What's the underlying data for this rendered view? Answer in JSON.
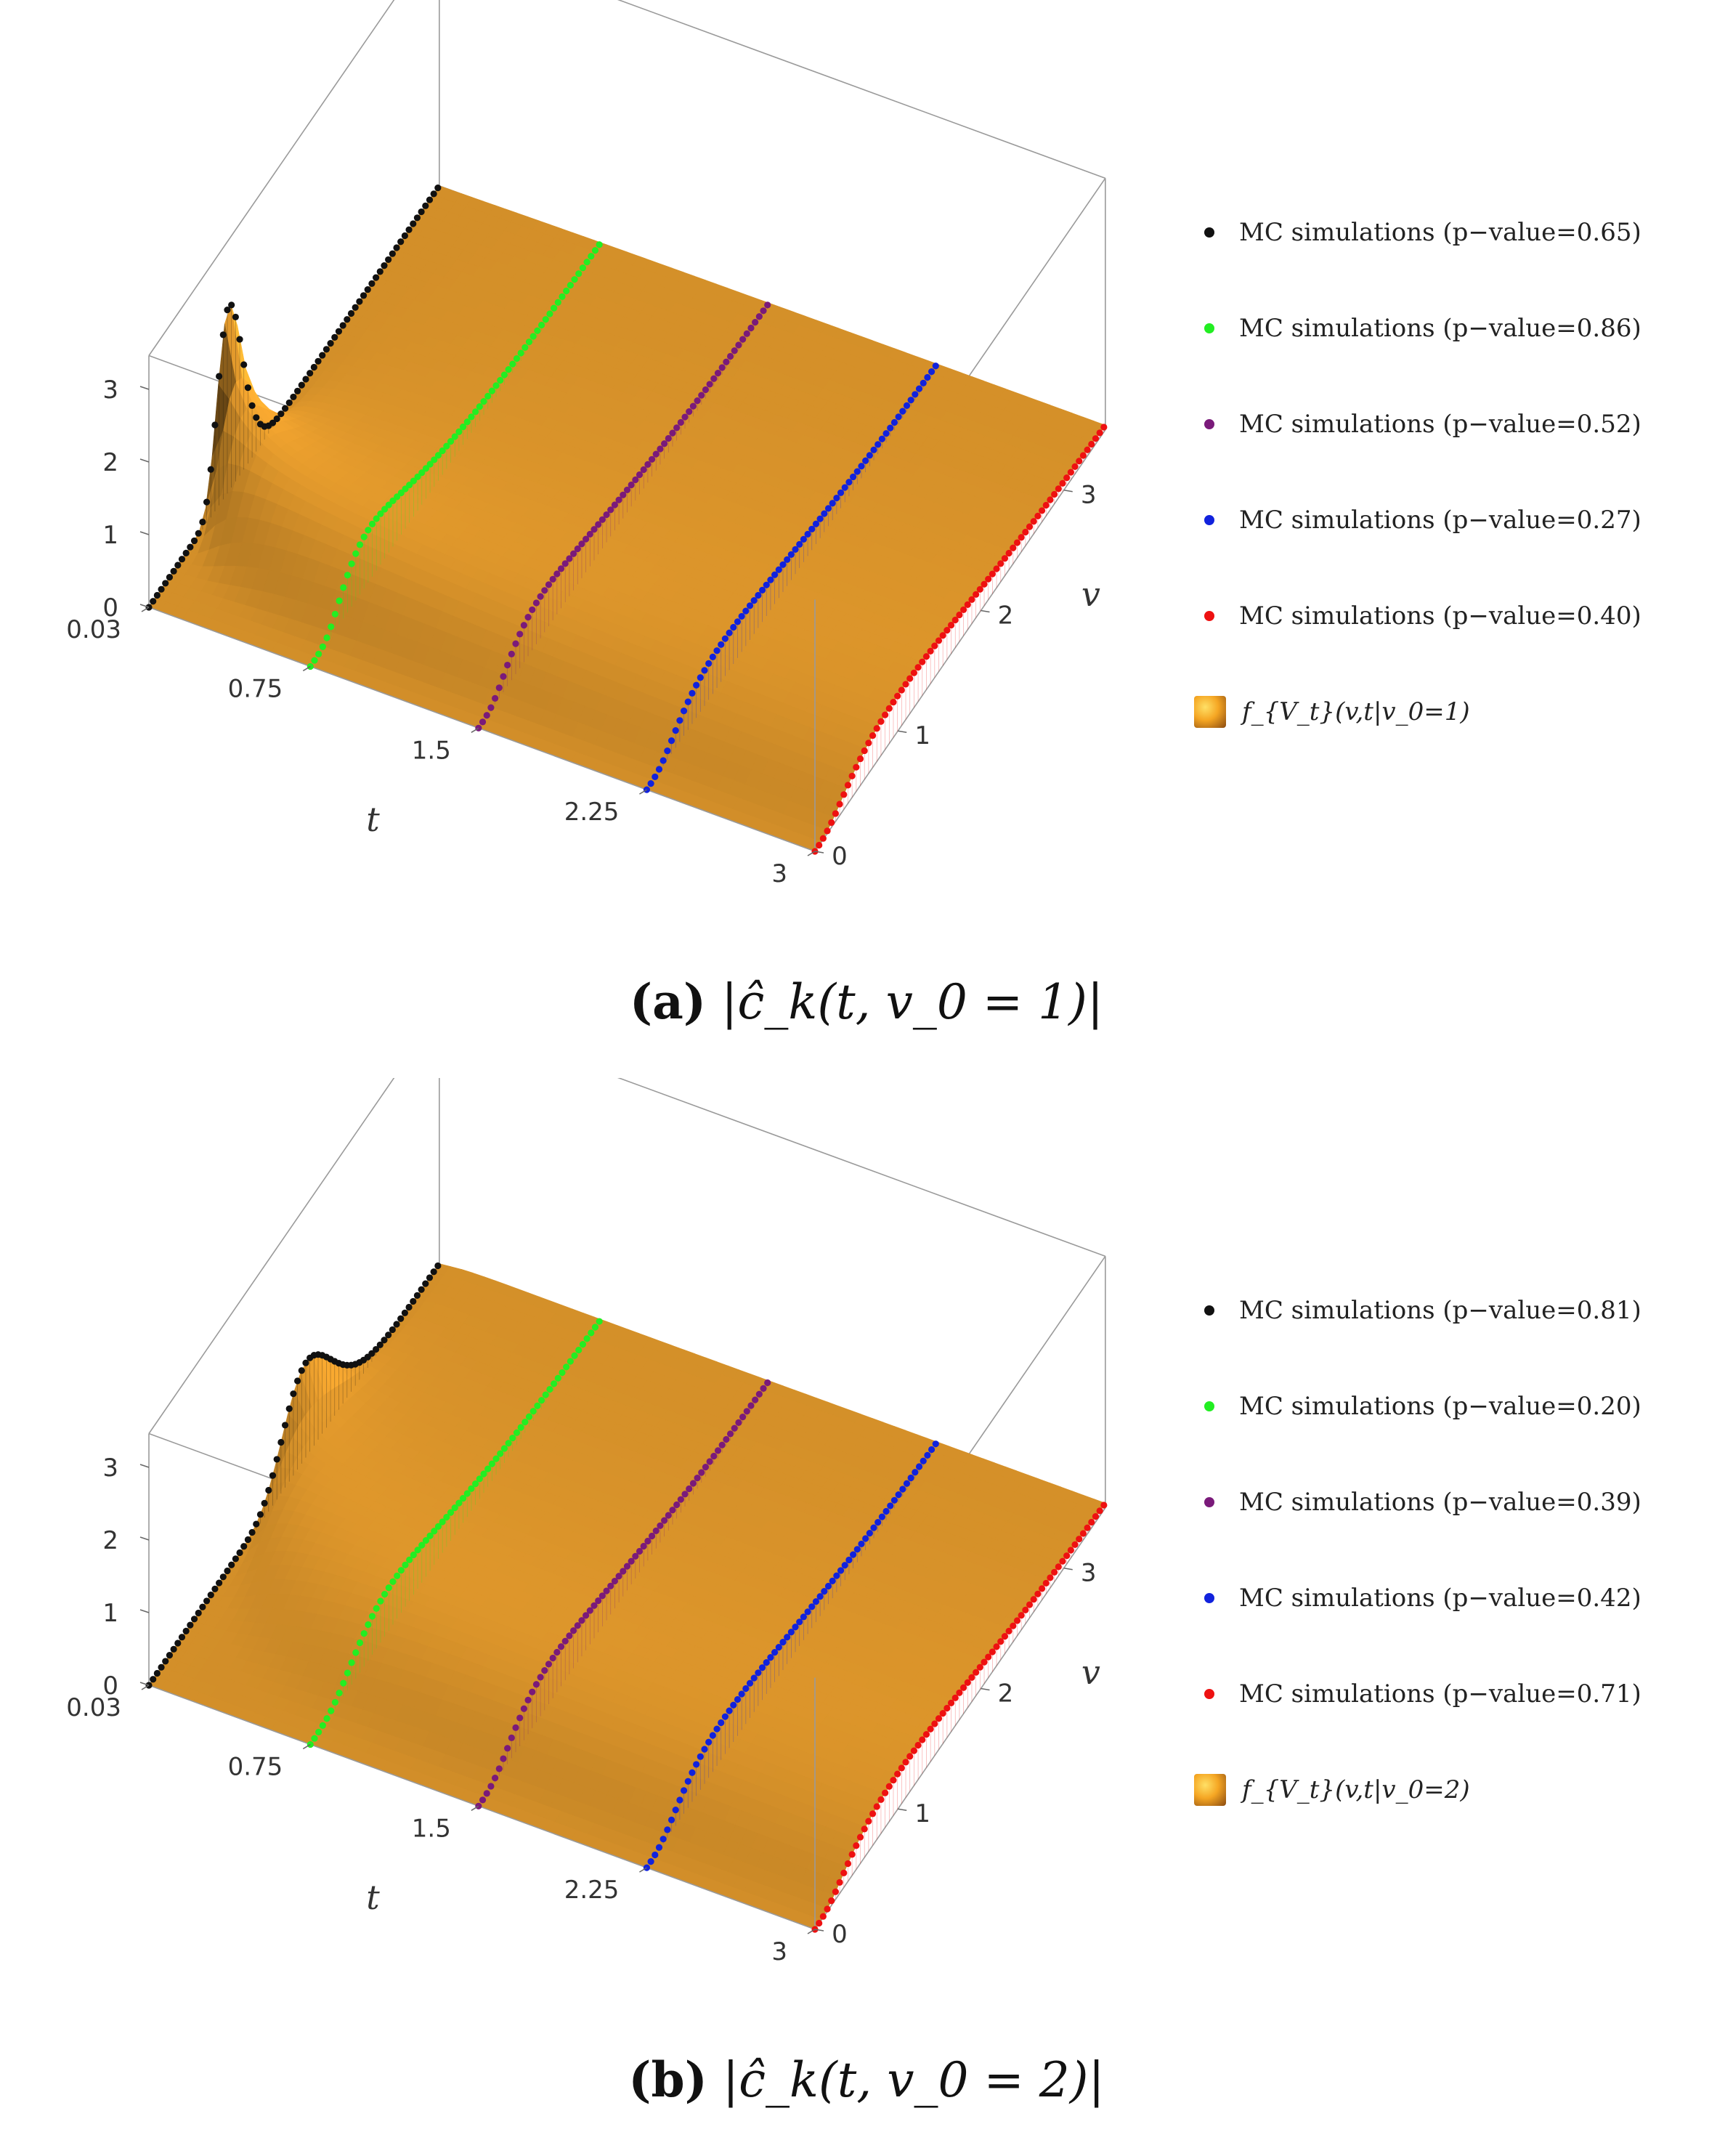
{
  "chart_data": [
    {
      "type": "surface3d-with-scatter",
      "caption_tag": "(a)",
      "caption_math": "|ĉ_k(t, v_0 = 1)|",
      "xlabel": "t",
      "ylabel": "v",
      "t_ticks": [
        "0.03",
        "0.75",
        "1.5",
        "2.25",
        "3"
      ],
      "v_ticks": [
        "0",
        "1",
        "2",
        "3"
      ],
      "z_ticks": [
        "0",
        "1",
        "2",
        "3"
      ],
      "t_range": [
        0.03,
        3
      ],
      "v_range": [
        0,
        3.5
      ],
      "z_range": [
        0,
        3.3
      ],
      "v0": 1,
      "surface_label": "f_{V_t}(v,t|v_0=1)",
      "series": [
        {
          "name": "MC simulations (p−value=0.65)",
          "t": 0.03,
          "color": "#111111"
        },
        {
          "name": "MC simulations (p−value=0.86)",
          "t": 0.75,
          "color": "#22ee22"
        },
        {
          "name": "MC simulations (p−value=0.52)",
          "t": 1.5,
          "color": "#7a1a7a"
        },
        {
          "name": "MC simulations (p−value=0.27)",
          "t": 2.25,
          "color": "#1122dd"
        },
        {
          "name": "MC simulations (p−value=0.40)",
          "t": 3,
          "color": "#ee1111"
        }
      ]
    },
    {
      "type": "surface3d-with-scatter",
      "caption_tag": "(b)",
      "caption_math": "|ĉ_k(t, v_0 = 2)|",
      "xlabel": "t",
      "ylabel": "v",
      "t_ticks": [
        "0.03",
        "0.75",
        "1.5",
        "2.25",
        "3"
      ],
      "v_ticks": [
        "0",
        "1",
        "2",
        "3"
      ],
      "z_ticks": [
        "0",
        "1",
        "2",
        "3"
      ],
      "t_range": [
        0.03,
        3
      ],
      "v_range": [
        0,
        3.5
      ],
      "z_range": [
        0,
        3.3
      ],
      "v0": 2,
      "surface_label": "f_{V_t}(v,t|v_0=2)",
      "series": [
        {
          "name": "MC simulations (p−value=0.81)",
          "t": 0.03,
          "color": "#111111"
        },
        {
          "name": "MC simulations (p−value=0.20)",
          "t": 0.75,
          "color": "#22ee22"
        },
        {
          "name": "MC simulations (p−value=0.39)",
          "t": 1.5,
          "color": "#7a1a7a"
        },
        {
          "name": "MC simulations (p−value=0.42)",
          "t": 2.25,
          "color": "#1122dd"
        },
        {
          "name": "MC simulations (p−value=0.71)",
          "t": 3,
          "color": "#ee1111"
        }
      ]
    }
  ]
}
